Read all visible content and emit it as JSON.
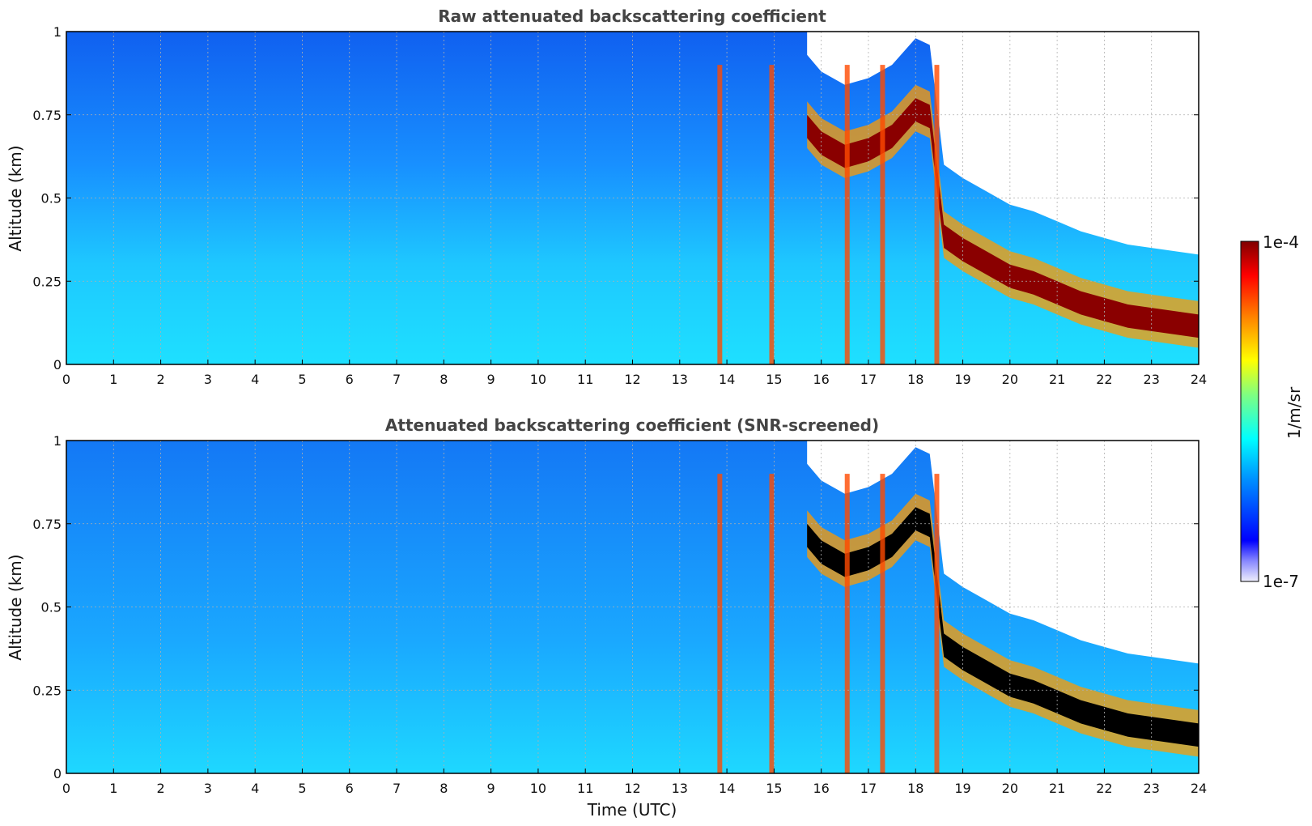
{
  "chart_data": [
    {
      "type": "heatmap",
      "title": "Raw attenuated backscattering coefficient",
      "xlabel": "",
      "ylabel": "Altitude (km)",
      "xlim": [
        0,
        24
      ],
      "ylim": [
        0,
        1
      ],
      "xticks": [
        "0",
        "1",
        "2",
        "3",
        "4",
        "5",
        "6",
        "7",
        "8",
        "9",
        "10",
        "11",
        "12",
        "13",
        "14",
        "15",
        "16",
        "17",
        "18",
        "19",
        "20",
        "21",
        "22",
        "23",
        "24"
      ],
      "yticks": [
        "0",
        "0.25",
        "0.5",
        "0.75",
        "1"
      ],
      "grid": true,
      "layer_top_km": {
        "x": [
          15.7,
          16,
          16.5,
          17,
          17.5,
          18,
          18.3,
          18.6,
          19,
          19.5,
          20,
          20.5,
          21,
          21.5,
          22,
          22.5,
          23,
          23.5,
          24
        ],
        "y": [
          0.75,
          0.7,
          0.66,
          0.68,
          0.72,
          0.8,
          0.78,
          0.42,
          0.38,
          0.34,
          0.3,
          0.28,
          0.25,
          0.22,
          0.2,
          0.18,
          0.17,
          0.16,
          0.15
        ]
      },
      "notes": "pseudo-colour field; white = no signal"
    },
    {
      "type": "heatmap",
      "title": "Attenuated backscattering coefficient (SNR-screened)",
      "xlabel": "Time (UTC)",
      "ylabel": "Altitude (km)",
      "xlim": [
        0,
        24
      ],
      "ylim": [
        0,
        1
      ],
      "xticks": [
        "0",
        "1",
        "2",
        "3",
        "4",
        "5",
        "6",
        "7",
        "8",
        "9",
        "10",
        "11",
        "12",
        "13",
        "14",
        "15",
        "16",
        "17",
        "18",
        "19",
        "20",
        "21",
        "22",
        "23",
        "24"
      ],
      "yticks": [
        "0",
        "0.25",
        "0.5",
        "0.75",
        "1"
      ],
      "grid": true
    }
  ],
  "colorbar": {
    "max_label": "1e-4",
    "min_label": "1e-7",
    "label": "1/m/sr",
    "colormap": "jet",
    "scale": "log",
    "colors": [
      "#eeeefc",
      "#0000ff",
      "#00a0ff",
      "#00ffff",
      "#80ff80",
      "#ffff00",
      "#ff8000",
      "#ff0000",
      "#800000"
    ]
  }
}
